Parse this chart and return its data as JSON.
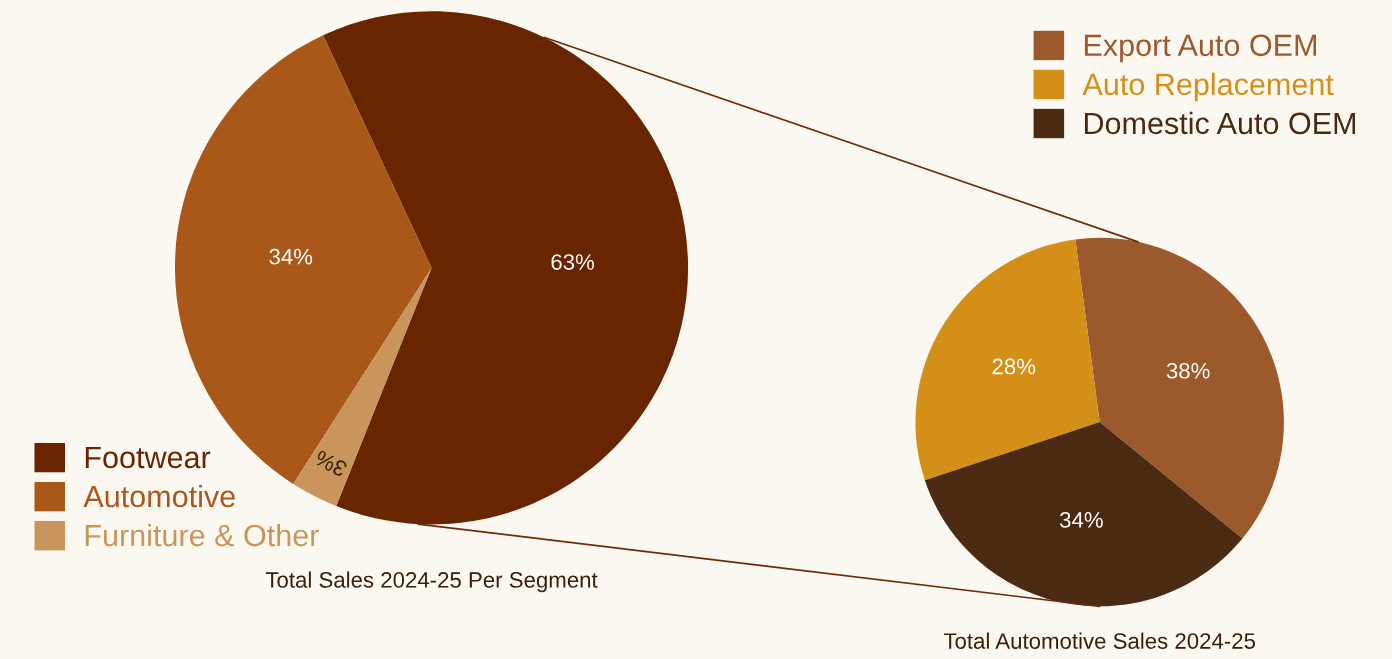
{
  "chart_data": [
    {
      "type": "pie",
      "title": "Total Sales 2024-25 Per Segment",
      "categories": [
        "Footwear",
        "Automotive",
        "Furniture & Other"
      ],
      "values": [
        63,
        34,
        3
      ],
      "colors": [
        "#692400",
        "#a9581a",
        "#c9955a"
      ],
      "value_labels": [
        "63%",
        "34%",
        "3%"
      ],
      "legend": "bottom left"
    },
    {
      "type": "pie",
      "title": "Total Automotive Sales 2024-25",
      "categories": [
        "Export Auto OEM",
        "Auto Replacement",
        "Domestic Auto OEM"
      ],
      "values": [
        38,
        28,
        34
      ],
      "colors": [
        "#9c5a2c",
        "#d48f18",
        "#4b2a14"
      ],
      "value_labels": [
        "38%",
        "28%",
        "34%"
      ],
      "legend": "top right"
    }
  ]
}
